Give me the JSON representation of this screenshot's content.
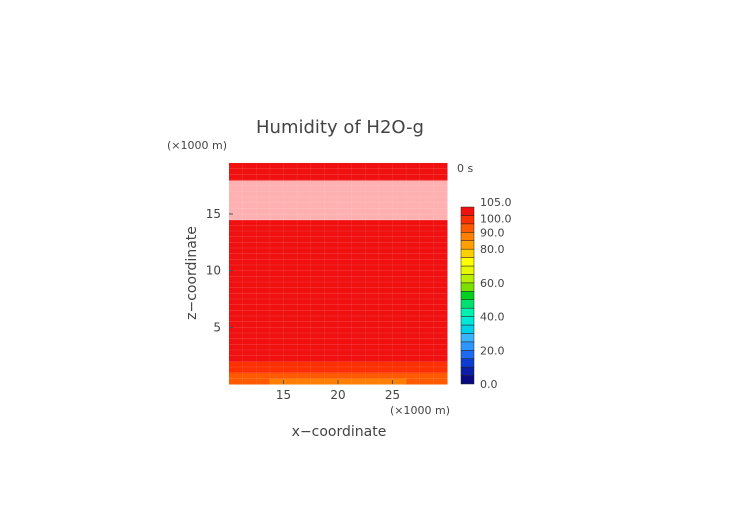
{
  "chart_data": {
    "type": "heatmap",
    "title": "Humidity of H2O-g",
    "xlabel": "x−coordinate",
    "ylabel": "z−coordinate",
    "x_unit": "(×1000 m)",
    "y_unit": "(×1000 m)",
    "time_label": "0 s",
    "xlim": [
      10,
      30
    ],
    "ylim": [
      0,
      19.5
    ],
    "x_ticks": [
      15,
      20,
      25
    ],
    "y_ticks": [
      5,
      10,
      15
    ],
    "x_tick_labels": [
      "15",
      "20",
      "25"
    ],
    "y_tick_labels": [
      "5",
      "10",
      "15"
    ],
    "colorbar": {
      "levels": [
        0,
        5,
        10,
        15,
        20,
        25,
        30,
        35,
        40,
        45,
        50,
        55,
        60,
        65,
        70,
        75,
        80,
        85,
        90,
        95,
        100,
        105
      ],
      "colors": [
        "#0a0a80",
        "#0c1ea6",
        "#0c3cd0",
        "#1e6af0",
        "#2e96ff",
        "#3ab4ff",
        "#00d0e8",
        "#00e8d8",
        "#00f0b0",
        "#00e070",
        "#00d020",
        "#7ce000",
        "#b8f000",
        "#e8f800",
        "#ffff00",
        "#ffd000",
        "#ffa000",
        "#ff8000",
        "#ff5a00",
        "#ff3000",
        "#f01010",
        "#ffffff"
      ],
      "tick_values": [
        0,
        20,
        40,
        60,
        80,
        90,
        100,
        105
      ],
      "tick_labels": [
        "0.0",
        "20.0",
        "40.0",
        "60.0",
        "80.0",
        "90.0",
        "100.0",
        "105.0"
      ]
    },
    "z_levels": [
      0,
      0.5,
      1,
      1.5,
      2,
      2.5,
      3,
      14.5,
      15,
      18,
      18.5,
      19.5
    ],
    "humidity_profile_center": [
      86,
      92,
      96,
      98,
      100,
      102,
      102,
      104,
      104,
      102,
      102
    ],
    "humidity_profile_edge": [
      92,
      94,
      97,
      99,
      100,
      102,
      102,
      104,
      104,
      102,
      102
    ],
    "grid": true
  }
}
